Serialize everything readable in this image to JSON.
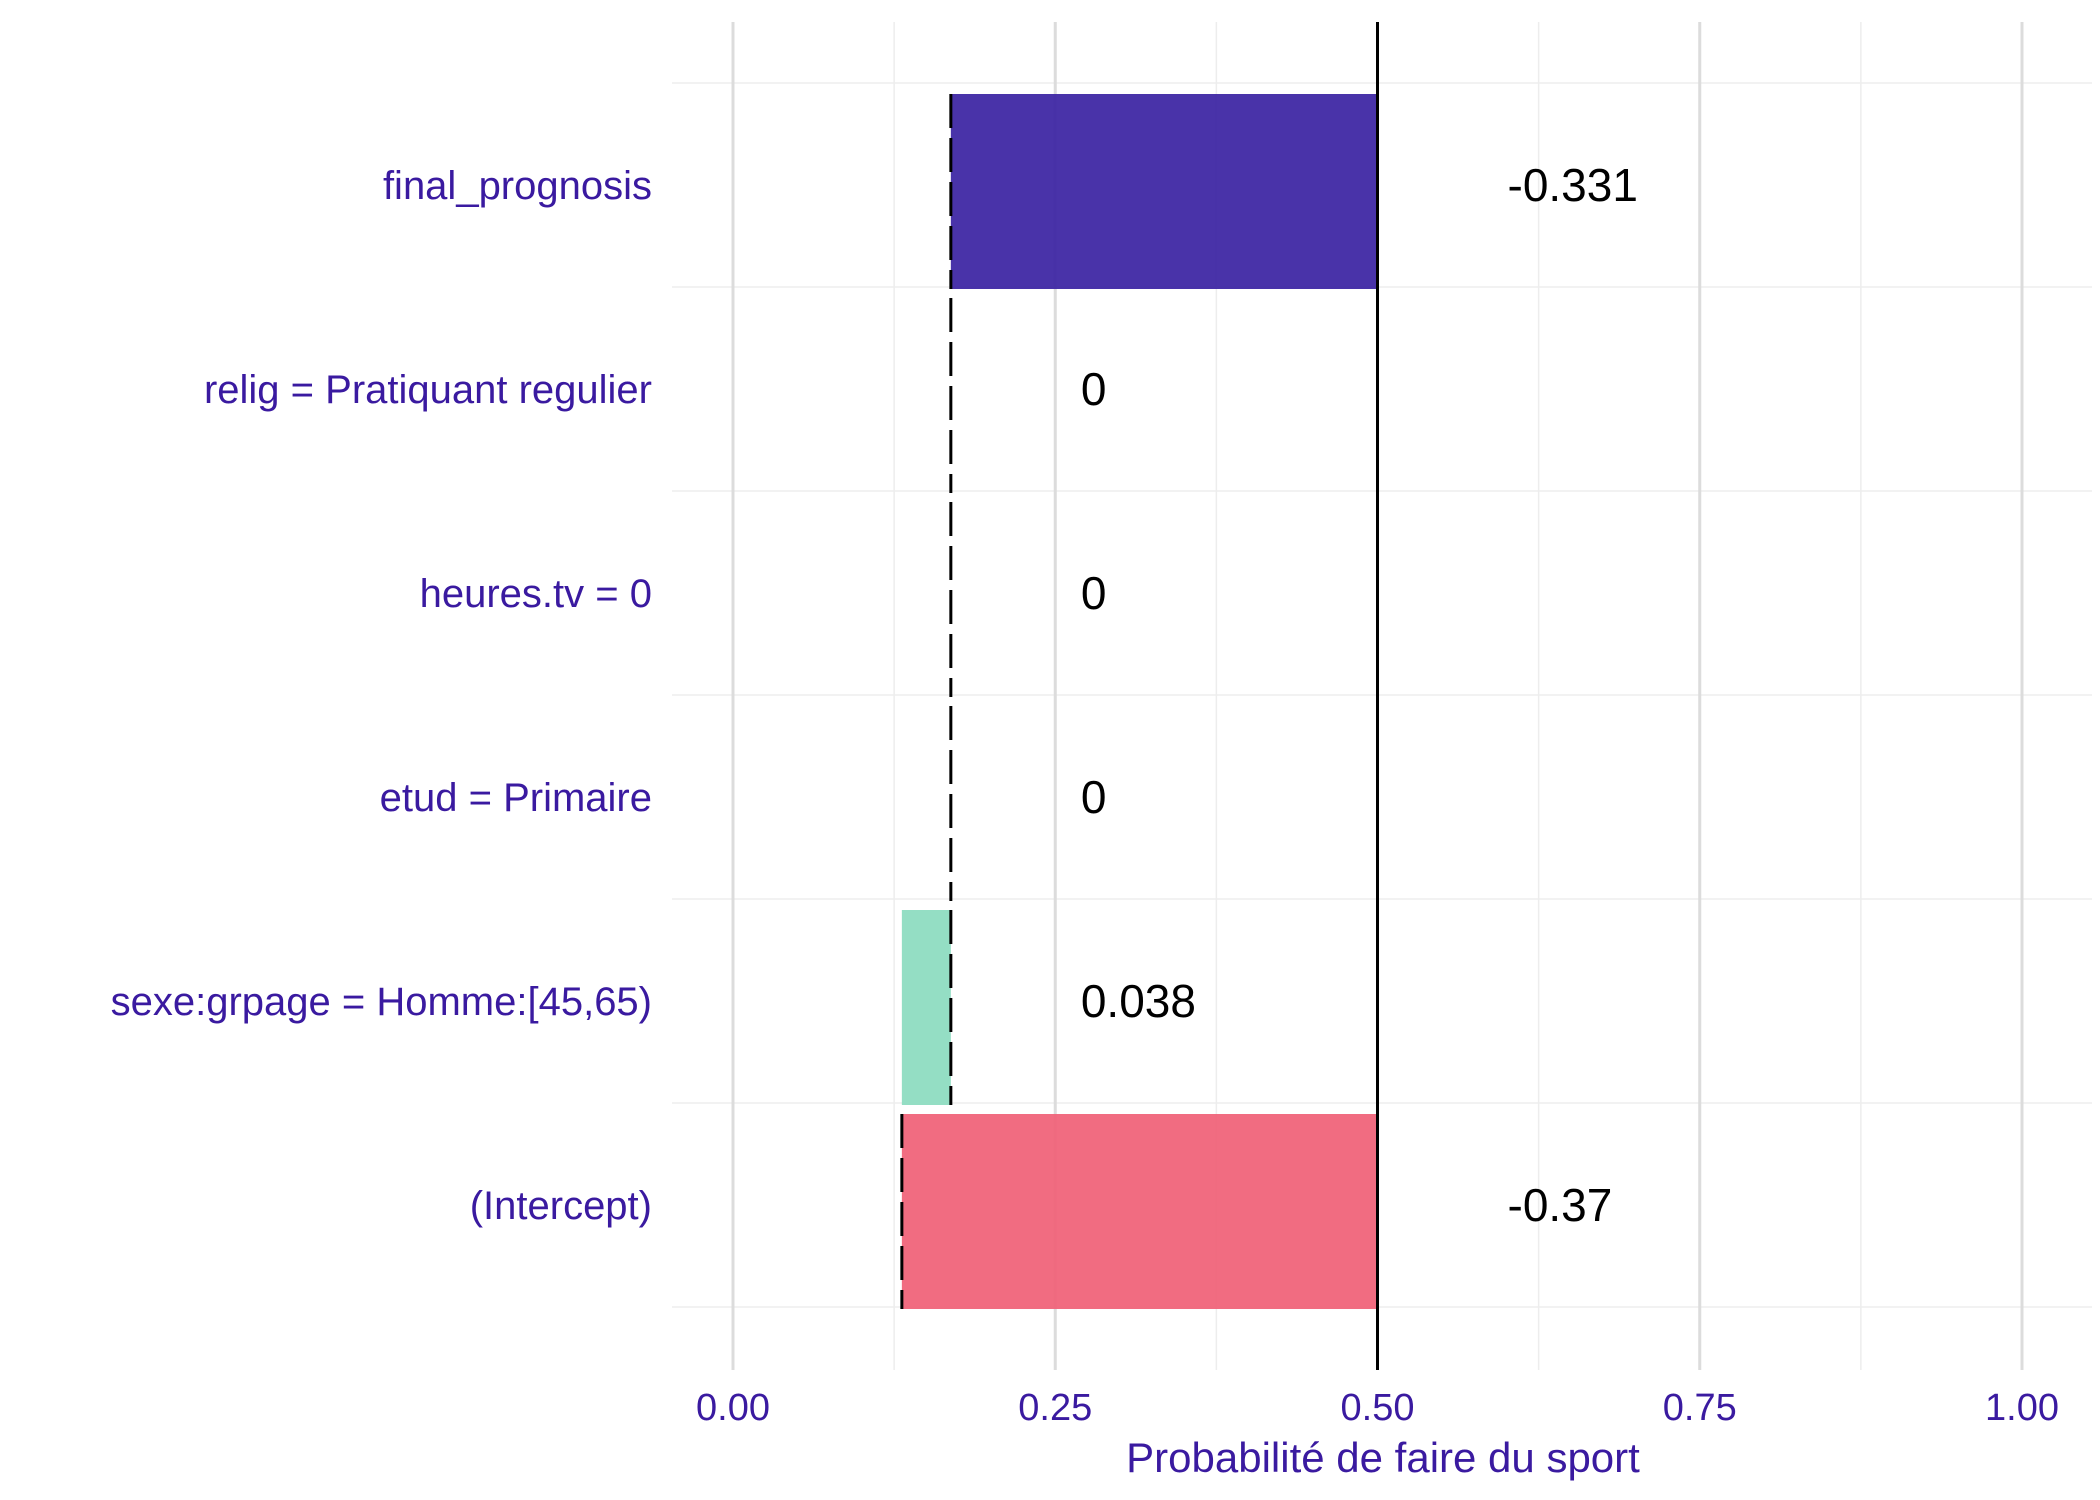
{
  "chart_data": {
    "type": "bar",
    "subtype": "break-down waterfall",
    "xlabel": "Probabilité de faire du sport",
    "xlim": [
      -0.05,
      1.05
    ],
    "x_ticks": [
      0,
      0.25,
      0.5,
      0.75,
      1
    ],
    "x_tick_labels": [
      "0.00",
      "0.25",
      "0.50",
      "0.75",
      "1.00"
    ],
    "reference_x": 0.5,
    "bars": [
      {
        "label": "final_prognosis",
        "start": 0.5,
        "end": 0.169,
        "value_label": "-0.331",
        "color": "#3a22a2"
      },
      {
        "label": "relig = Pratiquant regulier",
        "start": 0.169,
        "end": 0.169,
        "value_label": "0",
        "color": "#3a22a2"
      },
      {
        "label": "heures.tv = 0",
        "start": 0.169,
        "end": 0.169,
        "value_label": "0",
        "color": "#3a22a2"
      },
      {
        "label": "etud = Primaire",
        "start": 0.169,
        "end": 0.169,
        "value_label": "0",
        "color": "#3a22a2"
      },
      {
        "label": "sexe:grpage = Homme:[45,65)",
        "start": 0.131,
        "end": 0.169,
        "value_label": "0.038",
        "color": "#8bdbbf"
      },
      {
        "label": "(Intercept)",
        "start": 0.5,
        "end": 0.131,
        "value_label": "-0.37",
        "color": "#f05f76"
      }
    ]
  }
}
